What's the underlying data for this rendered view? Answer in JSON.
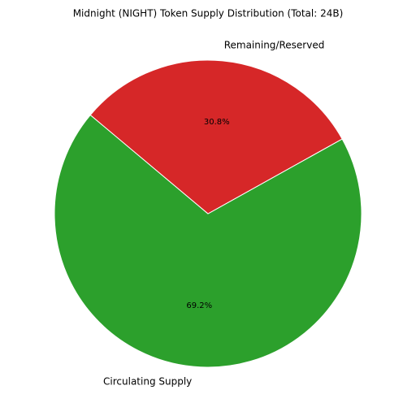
{
  "chart_data": {
    "type": "pie",
    "title": "Midnight (NIGHT) Token Supply Distribution (Total: 24B)",
    "categories": [
      "Circulating Supply",
      "Remaining/Reserved"
    ],
    "values": [
      69.2,
      30.8
    ],
    "value_labels": [
      "69.2%",
      "30.8%"
    ],
    "colors": [
      "#2ca02c",
      "#d62728"
    ],
    "startangle": 140
  }
}
